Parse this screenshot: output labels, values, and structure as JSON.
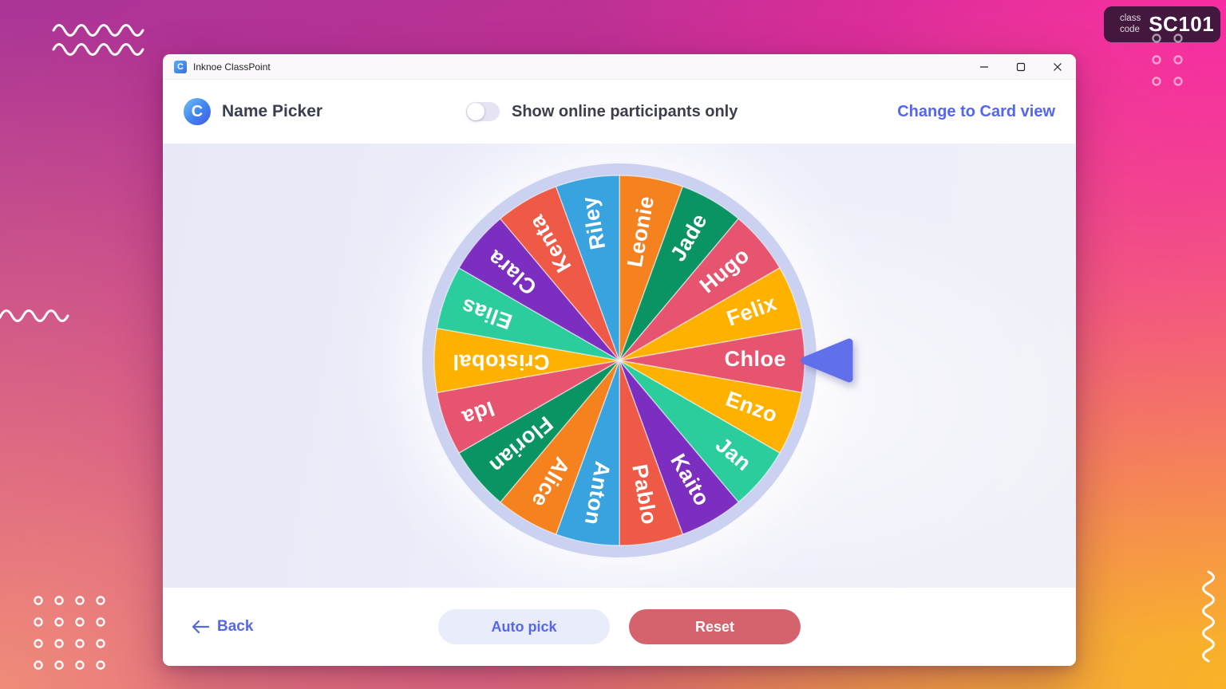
{
  "class_code": {
    "label_line1": "class",
    "label_line2": "code",
    "value": "SC101"
  },
  "window": {
    "titlebar": {
      "title": "Inknoe ClassPoint",
      "app_icon_letter": "C"
    },
    "header": {
      "logo_letter": "C",
      "title": "Name Picker",
      "toggle_label": "Show online participants only",
      "toggle_state": "off",
      "view_link": "Change to Card view"
    },
    "footer": {
      "back_label": "Back",
      "auto_pick_label": "Auto pick",
      "reset_label": "Reset"
    }
  },
  "wheel": {
    "selected": "Chloe",
    "segment_angle_deg": 20,
    "segments": [
      {
        "name": "Leonie",
        "color": "#f5821f"
      },
      {
        "name": "Jade",
        "color": "#0b9463"
      },
      {
        "name": "Hugo",
        "color": "#e75470"
      },
      {
        "name": "Felix",
        "color": "#ffb100"
      },
      {
        "name": "Chloe",
        "color": "#e75470"
      },
      {
        "name": "Enzo",
        "color": "#ffb100"
      },
      {
        "name": "Jan",
        "color": "#2ccd9d"
      },
      {
        "name": "Kaito",
        "color": "#7b2ebf"
      },
      {
        "name": "Pablo",
        "color": "#ee5a45"
      },
      {
        "name": "Anton",
        "color": "#38a3de"
      },
      {
        "name": "Alice",
        "color": "#f5821f"
      },
      {
        "name": "Florian",
        "color": "#0b9463"
      },
      {
        "name": "Ida",
        "color": "#e75470"
      },
      {
        "name": "Cristobal",
        "color": "#ffb100"
      },
      {
        "name": "Elias",
        "color": "#2ccd9d"
      },
      {
        "name": "Clara",
        "color": "#7b2ebf"
      },
      {
        "name": "Kenta",
        "color": "#ee5a45"
      },
      {
        "name": "Riley",
        "color": "#38a3de"
      }
    ]
  },
  "colors": {
    "accent": "#5465f2",
    "pointer": "#6070ea",
    "wheel_ring": "#cbd2f1",
    "reset_button": "#d5636e",
    "badge_bg": "#44183e"
  }
}
